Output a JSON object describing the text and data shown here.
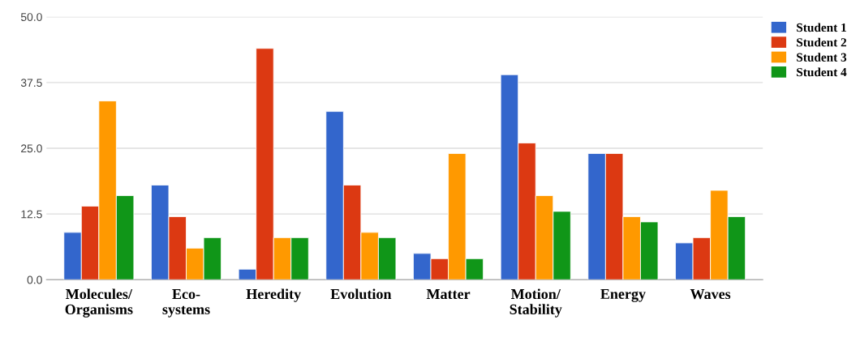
{
  "chart_data": {
    "type": "bar",
    "categories": [
      "Molecules/\nOrganisms",
      "Eco-\nsystems",
      "Heredity",
      "Evolution",
      "Matter",
      "Motion/\nStability",
      "Energy",
      "Waves"
    ],
    "series": [
      {
        "name": "Student 1",
        "color": "#3366cc",
        "values": [
          9,
          18,
          2,
          32,
          5,
          39,
          24,
          7
        ]
      },
      {
        "name": "Student 2",
        "color": "#dc3912",
        "values": [
          14,
          12,
          44,
          18,
          4,
          26,
          24,
          8
        ]
      },
      {
        "name": "Student 3",
        "color": "#ff9900",
        "values": [
          34,
          6,
          8,
          9,
          24,
          16,
          12,
          17
        ]
      },
      {
        "name": "Student 4",
        "color": "#109618",
        "values": [
          16,
          8,
          8,
          8,
          4,
          13,
          11,
          12
        ]
      }
    ],
    "ylim": [
      0,
      50
    ],
    "yticks": [
      {
        "value": 0,
        "label": "0.0"
      },
      {
        "value": 12.5,
        "label": "12.5"
      },
      {
        "value": 25,
        "label": "25.0"
      },
      {
        "value": 37.5,
        "label": "37.5"
      },
      {
        "value": 50,
        "label": "50.0"
      }
    ],
    "grid": "y",
    "legend": "top right"
  }
}
